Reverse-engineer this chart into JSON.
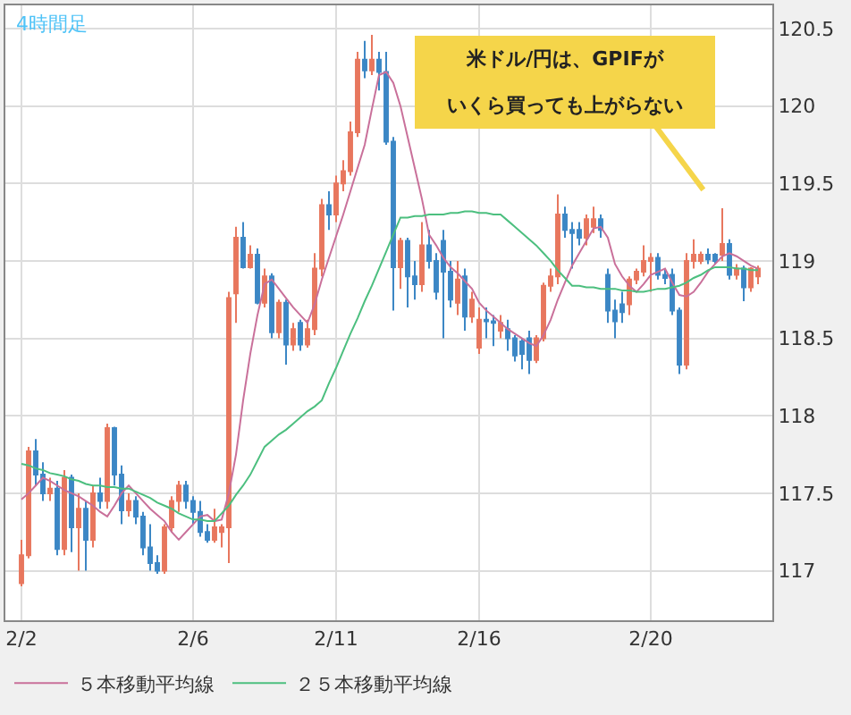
{
  "chart_data": {
    "type": "candlestick",
    "title": "4時間足",
    "categories": [
      "2/2",
      null,
      null,
      null,
      null,
      null,
      null,
      null,
      null,
      null,
      null,
      null,
      null,
      null,
      null,
      null,
      null,
      null,
      null,
      null,
      null,
      null,
      null,
      null,
      "2/6",
      null,
      null,
      null,
      null,
      null,
      null,
      null,
      null,
      null,
      null,
      null,
      null,
      null,
      null,
      null,
      null,
      null,
      null,
      null,
      "2/11",
      null,
      null,
      null,
      null,
      null,
      null,
      null,
      null,
      null,
      null,
      null,
      null,
      null,
      null,
      null,
      null,
      null,
      null,
      null,
      "2/16",
      null,
      null,
      null,
      null,
      null,
      null,
      null,
      null,
      null,
      null,
      null,
      null,
      null,
      null,
      null,
      null,
      null,
      null,
      null,
      null,
      null,
      null,
      null,
      "2/20",
      null,
      null,
      null,
      null,
      null,
      null,
      null,
      null,
      null,
      null,
      null,
      null,
      null,
      null,
      null
    ],
    "ohlc": [
      [
        116.92,
        117.2,
        116.9,
        117.1
      ],
      [
        117.1,
        117.8,
        117.08,
        117.77
      ],
      [
        117.77,
        117.85,
        117.55,
        117.62
      ],
      [
        117.62,
        117.7,
        117.45,
        117.5
      ],
      [
        117.5,
        117.6,
        117.45,
        117.53
      ],
      [
        117.53,
        117.58,
        117.1,
        117.14
      ],
      [
        117.14,
        117.65,
        117.1,
        117.6
      ],
      [
        117.6,
        117.62,
        117.12,
        117.28
      ],
      [
        117.28,
        117.5,
        117.0,
        117.4
      ],
      [
        117.4,
        117.45,
        117.0,
        117.2
      ],
      [
        117.2,
        117.55,
        117.15,
        117.5
      ],
      [
        117.5,
        117.6,
        117.4,
        117.45
      ],
      [
        117.45,
        117.95,
        117.4,
        117.92
      ],
      [
        117.92,
        117.93,
        117.55,
        117.62
      ],
      [
        117.62,
        117.68,
        117.3,
        117.39
      ],
      [
        117.39,
        117.5,
        117.35,
        117.45
      ],
      [
        117.45,
        117.48,
        117.3,
        117.35
      ],
      [
        117.35,
        117.38,
        117.1,
        117.15
      ],
      [
        117.15,
        117.3,
        117.0,
        117.05
      ],
      [
        117.05,
        117.1,
        116.98,
        117.0
      ],
      [
        117.0,
        117.3,
        116.98,
        117.28
      ],
      [
        117.28,
        117.48,
        117.25,
        117.45
      ],
      [
        117.45,
        117.58,
        117.38,
        117.55
      ],
      [
        117.55,
        117.58,
        117.4,
        117.45
      ],
      [
        117.45,
        117.48,
        117.3,
        117.38
      ],
      [
        117.38,
        117.45,
        117.22,
        117.25
      ],
      [
        117.25,
        117.3,
        117.18,
        117.2
      ],
      [
        117.2,
        117.4,
        117.18,
        117.28
      ],
      [
        117.25,
        117.3,
        117.15,
        117.28
      ],
      [
        117.28,
        118.8,
        117.05,
        118.76
      ],
      [
        118.79,
        119.22,
        118.6,
        119.15
      ],
      [
        119.15,
        119.25,
        118.95,
        118.96
      ],
      [
        118.96,
        119.1,
        118.95,
        119.04
      ],
      [
        119.04,
        119.08,
        118.72,
        118.73
      ],
      [
        118.73,
        118.95,
        118.7,
        118.9
      ],
      [
        118.9,
        118.92,
        118.5,
        118.54
      ],
      [
        118.54,
        118.75,
        118.5,
        118.73
      ],
      [
        118.73,
        118.75,
        118.33,
        118.46
      ],
      [
        118.46,
        118.6,
        118.42,
        118.56
      ],
      [
        118.6,
        118.62,
        118.42,
        118.46
      ],
      [
        118.46,
        118.62,
        118.44,
        118.56
      ],
      [
        118.56,
        119.05,
        118.52,
        118.95
      ],
      [
        118.95,
        119.4,
        118.9,
        119.36
      ],
      [
        119.36,
        119.45,
        119.2,
        119.3
      ],
      [
        119.3,
        119.55,
        119.25,
        119.5
      ],
      [
        119.5,
        119.65,
        119.45,
        119.58
      ],
      [
        119.58,
        119.9,
        119.55,
        119.83
      ],
      [
        119.83,
        120.35,
        119.8,
        120.3
      ],
      [
        120.3,
        120.42,
        120.18,
        120.23
      ],
      [
        120.23,
        120.46,
        120.2,
        120.3
      ],
      [
        120.3,
        120.35,
        120.1,
        120.22
      ],
      [
        120.22,
        120.35,
        119.75,
        119.77
      ],
      [
        119.77,
        119.8,
        118.68,
        118.96
      ],
      [
        118.96,
        119.15,
        118.82,
        119.13
      ],
      [
        119.13,
        119.15,
        118.7,
        118.9
      ],
      [
        118.9,
        119.0,
        118.75,
        118.85
      ],
      [
        118.85,
        119.25,
        118.8,
        119.1
      ],
      [
        119.1,
        119.2,
        118.95,
        119.0
      ],
      [
        119.0,
        119.05,
        118.75,
        118.8
      ],
      [
        119.13,
        119.2,
        118.5,
        118.93
      ],
      [
        118.93,
        119.0,
        118.7,
        118.75
      ],
      [
        118.73,
        119.0,
        118.65,
        118.88
      ],
      [
        118.9,
        118.95,
        118.55,
        118.64
      ],
      [
        118.64,
        118.8,
        118.6,
        118.75
      ],
      [
        118.44,
        118.7,
        118.4,
        118.62
      ],
      [
        118.62,
        118.7,
        118.5,
        118.61
      ],
      [
        118.61,
        118.65,
        118.45,
        118.6
      ],
      [
        118.55,
        118.65,
        118.5,
        118.6
      ],
      [
        118.56,
        118.62,
        118.42,
        118.5
      ],
      [
        118.5,
        118.52,
        118.35,
        118.39
      ],
      [
        118.48,
        118.5,
        118.3,
        118.4
      ],
      [
        118.5,
        118.55,
        118.27,
        118.36
      ],
      [
        118.36,
        118.52,
        118.34,
        118.5
      ],
      [
        118.5,
        118.86,
        118.48,
        118.84
      ],
      [
        118.84,
        118.95,
        118.8,
        118.9
      ],
      [
        118.9,
        119.43,
        118.85,
        119.3
      ],
      [
        119.3,
        119.35,
        119.15,
        119.2
      ],
      [
        119.2,
        119.25,
        118.95,
        119.18
      ],
      [
        119.2,
        119.25,
        119.1,
        119.15
      ],
      [
        119.15,
        119.3,
        119.1,
        119.27
      ],
      [
        119.22,
        119.35,
        119.18,
        119.27
      ],
      [
        119.27,
        119.3,
        119.15,
        119.2
      ],
      [
        118.91,
        118.95,
        118.6,
        118.68
      ],
      [
        118.68,
        118.75,
        118.5,
        118.61
      ],
      [
        118.72,
        118.8,
        118.6,
        118.67
      ],
      [
        118.72,
        118.9,
        118.65,
        118.88
      ],
      [
        118.88,
        118.95,
        118.85,
        118.93
      ],
      [
        118.93,
        119.1,
        118.9,
        119.0
      ],
      [
        119.0,
        119.05,
        118.8,
        119.02
      ],
      [
        119.02,
        119.05,
        118.88,
        118.91
      ],
      [
        118.91,
        118.95,
        118.85,
        118.89
      ],
      [
        118.91,
        118.95,
        118.65,
        118.68
      ],
      [
        118.68,
        118.7,
        118.27,
        118.33
      ],
      [
        118.33,
        119.05,
        118.3,
        119.0
      ],
      [
        119.0,
        119.14,
        118.95,
        119.04
      ],
      [
        119.0,
        119.06,
        118.98,
        119.04
      ],
      [
        119.04,
        119.08,
        118.98,
        119.01
      ],
      [
        119.04,
        119.05,
        118.98,
        119.0
      ],
      [
        119.04,
        119.34,
        119.0,
        119.11
      ],
      [
        119.11,
        119.14,
        118.88,
        118.91
      ],
      [
        118.91,
        118.98,
        118.88,
        118.95
      ],
      [
        118.95,
        118.97,
        118.74,
        118.83
      ],
      [
        118.83,
        118.96,
        118.8,
        118.95
      ],
      [
        118.9,
        118.97,
        118.85,
        118.95
      ]
    ],
    "colors": [
      "#e8775e",
      "#e8775e",
      "#3c87c5",
      "#3c87c5",
      "#e8775e",
      "#3c87c5",
      "#e8775e",
      "#3c87c5",
      "#e8775e",
      "#3c87c5",
      "#e8775e",
      "#3c87c5",
      "#e8775e",
      "#3c87c5",
      "#3c87c5",
      "#e8775e",
      "#3c87c5",
      "#3c87c5",
      "#3c87c5",
      "#3c87c5",
      "#e8775e",
      "#e8775e",
      "#e8775e",
      "#3c87c5",
      "#3c87c5",
      "#3c87c5",
      "#3c87c5",
      "#e8775e",
      "#e8775e",
      "#e8775e",
      "#e8775e",
      "#3c87c5",
      "#e8775e",
      "#3c87c5",
      "#e8775e",
      "#3c87c5",
      "#e8775e",
      "#3c87c5",
      "#e8775e",
      "#3c87c5",
      "#e8775e",
      "#e8775e",
      "#e8775e",
      "#3c87c5",
      "#e8775e",
      "#e8775e",
      "#e8775e",
      "#e8775e",
      "#3c87c5",
      "#e8775e",
      "#3c87c5",
      "#3c87c5",
      "#3c87c5",
      "#e8775e",
      "#3c87c5",
      "#3c87c5",
      "#e8775e",
      "#3c87c5",
      "#3c87c5",
      "#3c87c5",
      "#3c87c5",
      "#e8775e",
      "#3c87c5",
      "#e8775e",
      "#e8775e",
      "#3c87c5",
      "#3c87c5",
      "#e8775e",
      "#3c87c5",
      "#3c87c5",
      "#3c87c5",
      "#3c87c5",
      "#e8775e",
      "#e8775e",
      "#e8775e",
      "#e8775e",
      "#3c87c5",
      "#3c87c5",
      "#3c87c5",
      "#e8775e",
      "#e8775e",
      "#3c87c5",
      "#3c87c5",
      "#3c87c5",
      "#3c87c5",
      "#e8775e",
      "#e8775e",
      "#e8775e",
      "#e8775e",
      "#3c87c5",
      "#3c87c5",
      "#3c87c5",
      "#3c87c5",
      "#e8775e",
      "#e8775e",
      "#e8775e",
      "#3c87c5",
      "#3c87c5",
      "#e8775e",
      "#3c87c5",
      "#e8775e",
      "#3c87c5",
      "#e8775e",
      "#e8775e"
    ],
    "series": [
      {
        "type": "line",
        "name": "５本移動平均線",
        "color": "#c9709a",
        "values": [
          117.46,
          117.5,
          117.55,
          117.6,
          117.58,
          117.55,
          117.52,
          117.5,
          117.48,
          117.45,
          117.42,
          117.38,
          117.35,
          117.42,
          117.5,
          117.55,
          117.5,
          117.45,
          117.4,
          117.36,
          117.32,
          117.25,
          117.2,
          117.25,
          117.3,
          117.35,
          117.36,
          117.32,
          117.33,
          117.5,
          117.75,
          118.1,
          118.4,
          118.65,
          118.85,
          118.88,
          118.82,
          118.76,
          118.7,
          118.65,
          118.6,
          118.72,
          118.88,
          119.02,
          119.16,
          119.3,
          119.45,
          119.6,
          119.75,
          119.98,
          120.2,
          120.22,
          120.15,
          120.0,
          119.8,
          119.6,
          119.4,
          119.17,
          119.1,
          119.02,
          118.96,
          118.92,
          118.87,
          118.82,
          118.73,
          118.68,
          118.64,
          118.6,
          118.56,
          118.53,
          118.5,
          118.47,
          118.45,
          118.52,
          118.62,
          118.75,
          118.86,
          118.97,
          119.05,
          119.13,
          119.21,
          119.22,
          119.15,
          118.98,
          118.9,
          118.84,
          118.8,
          118.85,
          118.91,
          118.93,
          118.95,
          118.86,
          118.78,
          118.77,
          118.8,
          118.86,
          118.93,
          118.98,
          119.03,
          119.05,
          119.03,
          119.0,
          118.97,
          118.95
        ]
      },
      {
        "type": "line",
        "name": "２５本移動平均線",
        "color": "#4cbf7f",
        "values": [
          117.69,
          117.68,
          117.66,
          117.65,
          117.63,
          117.62,
          117.61,
          117.59,
          117.58,
          117.56,
          117.55,
          117.55,
          117.54,
          117.54,
          117.53,
          117.53,
          117.51,
          117.49,
          117.47,
          117.44,
          117.42,
          117.4,
          117.37,
          117.35,
          117.33,
          117.33,
          117.32,
          117.32,
          117.37,
          117.42,
          117.49,
          117.55,
          117.62,
          117.71,
          117.8,
          117.84,
          117.88,
          117.91,
          117.95,
          117.99,
          118.03,
          118.06,
          118.1,
          118.21,
          118.31,
          118.42,
          118.53,
          118.63,
          118.74,
          118.84,
          118.95,
          119.06,
          119.17,
          119.28,
          119.28,
          119.29,
          119.29,
          119.3,
          119.3,
          119.3,
          119.31,
          119.31,
          119.32,
          119.32,
          119.31,
          119.31,
          119.3,
          119.3,
          119.26,
          119.22,
          119.18,
          119.14,
          119.1,
          119.05,
          119.0,
          118.94,
          118.89,
          118.84,
          118.84,
          118.83,
          118.83,
          118.82,
          118.82,
          118.82,
          118.81,
          118.81,
          118.8,
          118.8,
          118.81,
          118.82,
          118.82,
          118.83,
          118.84,
          118.86,
          118.89,
          118.91,
          118.94,
          118.96,
          118.96,
          118.96,
          118.95,
          118.95,
          118.94,
          118.94
        ]
      }
    ],
    "ylim": [
      116.68,
      120.65
    ],
    "yticks": [
      117,
      117.5,
      118,
      118.5,
      119,
      119.5,
      120,
      120.5
    ],
    "annotations": [
      "米ドル/円は、GPIFが",
      "いくら買っても上がらない"
    ],
    "grid": true,
    "legend": "bottom",
    "marker": "none"
  }
}
